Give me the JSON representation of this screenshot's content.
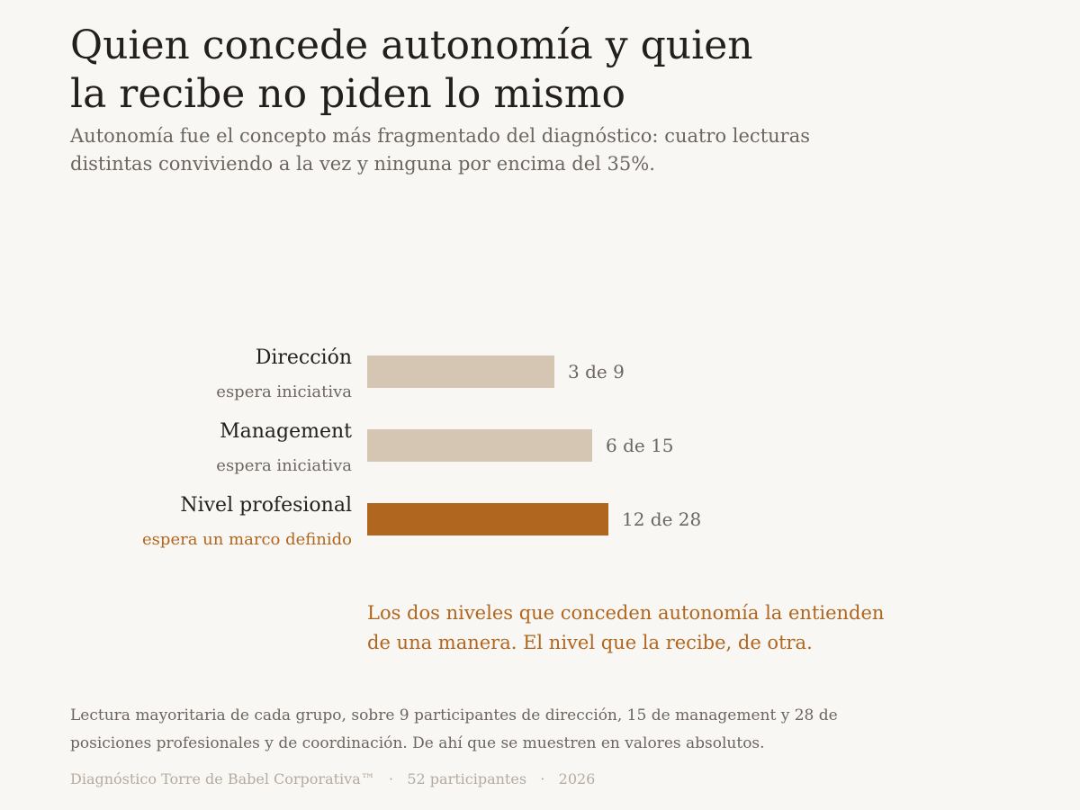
{
  "title": {
    "line1": "Quien concede autonomía y quien",
    "line2": "la recibe no piden lo mismo"
  },
  "subtitle": {
    "line1": "Autonomía fue el concepto más fragmentado del diagnóstico: cuatro lecturas",
    "line2": "distintas conviviendo a la vez y ninguna por encima del 35%."
  },
  "colors": {
    "muted_bar": "#d4c6b3",
    "accent": "#b0661f",
    "text_dark": "#231f1c",
    "text_muted": "#6c6560",
    "footer_text": "#b5aba0",
    "background": "#f9f7f3"
  },
  "chart_data": {
    "type": "bar",
    "orientation": "horizontal",
    "categories": [
      "Dirección",
      "Management",
      "Nivel profesional"
    ],
    "sublabels": [
      "espera iniciativa",
      "espera iniciativa",
      "espera un marco definido"
    ],
    "values": [
      3,
      6,
      12
    ],
    "totals": [
      9,
      15,
      28
    ],
    "value_labels": [
      "3 de 9",
      "6 de 15",
      "12 de 28"
    ],
    "highlight": [
      false,
      false,
      true
    ],
    "xlim": [
      0,
      1
    ],
    "grid": false
  },
  "callout": {
    "line1": "Los dos niveles que conceden autonomía la entienden",
    "line2": "de una manera. El nivel que la recibe, de otra."
  },
  "note": {
    "line1": "Lectura mayoritaria de cada grupo, sobre 9 participantes de dirección, 15 de management y 28 de",
    "line2": "posiciones profesionales y de coordinación. De ahí que se muestren en valores absolutos."
  },
  "footer": {
    "text": "Diagnóstico Torre de Babel Corporativa™   ·   52 participantes   ·   2026"
  }
}
